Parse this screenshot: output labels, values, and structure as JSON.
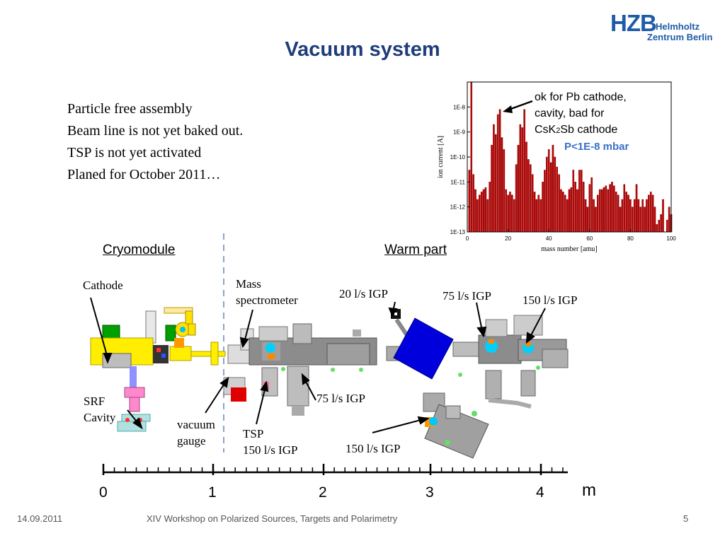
{
  "header": {
    "title": "Vacuum system",
    "logo": {
      "mark": "HZB",
      "line1": "Helmholtz",
      "line2": "Zentrum Berlin",
      "color": "#1f5ba8"
    }
  },
  "bullets": [
    "Particle free assembly",
    "Beam line is not yet baked out.",
    "TSP is not yet activated",
    "Planed for October 2011…"
  ],
  "sections": {
    "left": "Cryomodule",
    "right": "Warm part"
  },
  "labels": {
    "cathode": "Cathode",
    "mass_spec_1": "Mass",
    "mass_spec_2": "spectrometer",
    "igp20": "20 l/s IGP",
    "igp75_top": "75 l/s IGP",
    "igp150_top": "150 l/s IGP",
    "srf_1": "SRF",
    "srf_2": "Cavity",
    "gauge_1": "vacuum",
    "gauge_2": "gauge",
    "tsp": "TSP",
    "igp150_tsp": "150 l/s IGP",
    "igp75_bottom": "75 l/s IGP",
    "igp150_bottom": "150 l/s IGP"
  },
  "chart_annotation": {
    "line1": "ok for Pb cathode,",
    "line2": "cavity, bad for",
    "line3a": "CsK",
    "line3sub": "2",
    "line3b": "Sb cathode",
    "pressure": "P<1E-8 mbar"
  },
  "ruler": {
    "ticks": [
      "0",
      "1",
      "2",
      "3",
      "4"
    ],
    "unit": "m"
  },
  "footer": {
    "date": "14.09.2011",
    "event": "XIV Workshop on Polarized Sources, Targets and  Polarimetry",
    "page": "5"
  },
  "chart_data": {
    "type": "bar",
    "xlabel": "mass number [amu]",
    "ylabel": "ion current [A]",
    "xlim": [
      0,
      100
    ],
    "x_ticks": [
      "0",
      "20",
      "40",
      "60",
      "80",
      "100"
    ],
    "y_scale": "log",
    "ylim": [
      "1E-13",
      "1E-7"
    ],
    "y_ticks": [
      "1E-13",
      "1E-12",
      "1E-11",
      "1E-10",
      "1E-9",
      "1E-8"
    ],
    "bar_color": "#cc0000",
    "x": [
      1,
      2,
      3,
      4,
      5,
      6,
      7,
      8,
      9,
      10,
      11,
      12,
      13,
      14,
      15,
      16,
      17,
      18,
      19,
      20,
      21,
      22,
      23,
      24,
      25,
      26,
      27,
      28,
      29,
      30,
      31,
      32,
      33,
      34,
      35,
      36,
      37,
      38,
      39,
      40,
      41,
      42,
      43,
      44,
      45,
      46,
      47,
      48,
      49,
      50,
      51,
      52,
      53,
      54,
      55,
      56,
      57,
      58,
      59,
      60,
      61,
      62,
      63,
      64,
      65,
      66,
      67,
      68,
      69,
      70,
      71,
      72,
      73,
      74,
      75,
      76,
      77,
      78,
      79,
      80,
      81,
      82,
      83,
      84,
      85,
      86,
      87,
      88,
      89,
      90,
      91,
      92,
      93,
      94,
      95,
      96,
      97,
      98,
      99,
      100
    ],
    "values": [
      3e-11,
      1e-07,
      2e-11,
      5e-12,
      2e-12,
      3e-12,
      4e-12,
      5e-12,
      6e-12,
      2e-12,
      1e-11,
      3e-10,
      2e-09,
      8e-10,
      5e-09,
      8e-09,
      6e-10,
      2e-10,
      5e-12,
      3e-12,
      4e-12,
      3e-12,
      2e-12,
      5e-11,
      3e-10,
      2e-09,
      1.5e-09,
      8e-09,
      4e-10,
      8e-11,
      5e-11,
      2e-11,
      4e-12,
      2e-12,
      3e-12,
      2e-12,
      1e-11,
      3e-11,
      1e-10,
      2e-10,
      6e-11,
      3e-10,
      1e-10,
      4e-11,
      2e-11,
      5e-12,
      4e-12,
      3e-12,
      2e-12,
      5e-12,
      6e-12,
      3e-11,
      1e-11,
      5e-12,
      3e-11,
      3e-11,
      1e-11,
      2e-12,
      1e-12,
      8e-12,
      1.5e-11,
      2e-12,
      1e-12,
      3e-12,
      5e-12,
      5e-12,
      6e-12,
      7e-12,
      5e-12,
      8e-12,
      1e-11,
      7e-12,
      4e-12,
      3e-12,
      1e-12,
      2e-12,
      8e-12,
      4e-12,
      3e-12,
      2e-12,
      1e-12,
      2e-12,
      8e-12,
      2e-12,
      1e-12,
      2e-12,
      1e-12,
      2e-12,
      3e-12,
      4e-12,
      3e-12,
      1e-12,
      2e-13,
      3e-13,
      5e-13,
      2e-12,
      1e-13,
      3e-13,
      1e-12,
      5e-13
    ]
  }
}
